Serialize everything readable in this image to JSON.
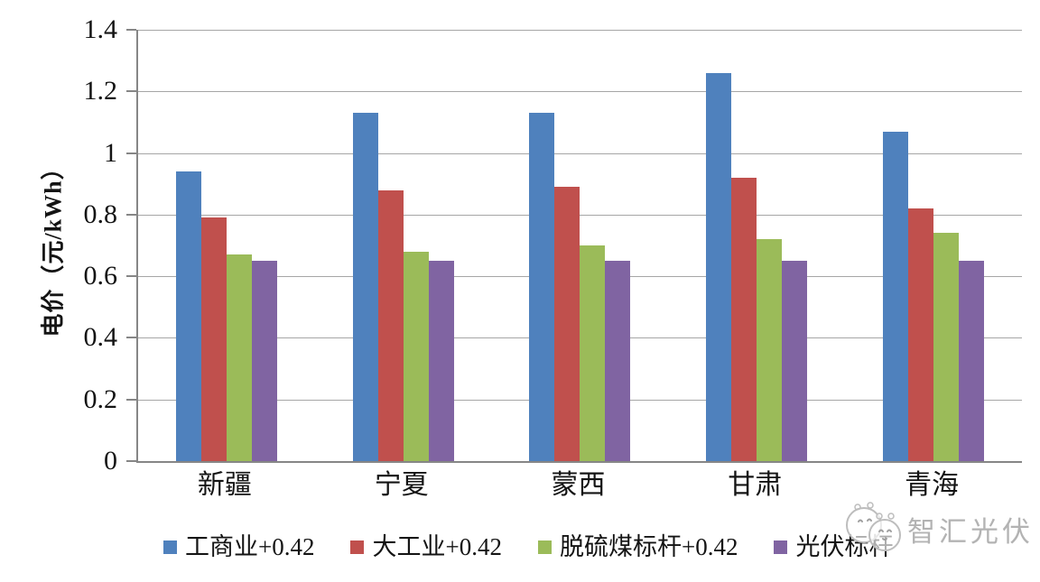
{
  "chart_data": {
    "type": "bar",
    "title": "",
    "categories": [
      "新疆",
      "宁夏",
      "蒙西",
      "甘肃",
      "青海"
    ],
    "series": [
      {
        "name": "工商业+0.42",
        "color": "#4F81BD",
        "values": [
          0.94,
          1.13,
          1.13,
          1.26,
          1.07
        ]
      },
      {
        "name": "大工业+0.42",
        "color": "#C0504D",
        "values": [
          0.79,
          0.88,
          0.89,
          0.92,
          0.82
        ]
      },
      {
        "name": "脱硫煤标杆+0.42",
        "color": "#9BBB59",
        "values": [
          0.67,
          0.68,
          0.7,
          0.72,
          0.74
        ]
      },
      {
        "name": "光伏标杆",
        "color": "#8064A2",
        "values": [
          0.65,
          0.65,
          0.65,
          0.65,
          0.65
        ]
      }
    ],
    "xlabel": "",
    "ylabel": "电价（元/kWh）",
    "ylim": [
      0,
      1.4
    ],
    "ytick_step": 0.2,
    "yticks": [
      "1.4",
      "1.2",
      "1",
      "0.8",
      "0.6",
      "0.4",
      "0.2",
      "0"
    ],
    "grid": true,
    "legend_position": "bottom"
  },
  "watermark": {
    "text": "智汇光伏",
    "logo": "two-circle-mascot-icon"
  }
}
